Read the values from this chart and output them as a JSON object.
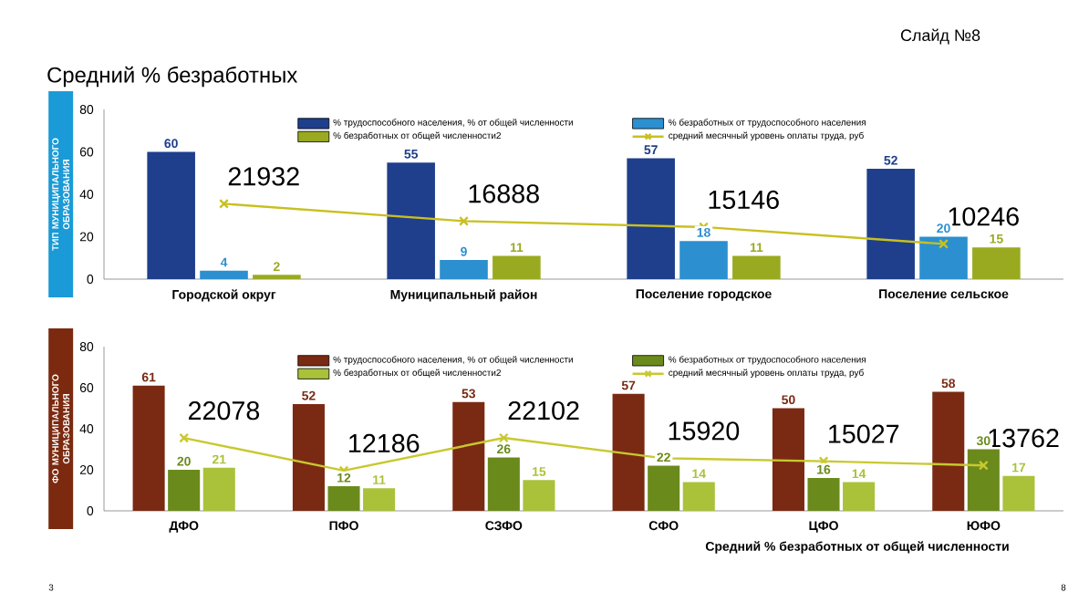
{
  "chart_data": [
    {
      "type": "bar",
      "title": "Средний % безработных",
      "ylabel": "ТИП МУНИЦИПАЛЬНОГО ОБРАЗОВАНИЯ",
      "annotations": [
        "Слайд №8"
      ],
      "categories": [
        "Городской округ",
        "Муниципальный район",
        "Поселение городское",
        "Поселение сельское"
      ],
      "series": [
        {
          "name": "% трудоспособного населения, % от общей численности",
          "color": "#1f3f8c",
          "values": [
            60,
            55,
            57,
            52
          ]
        },
        {
          "name": "% безработных от трудоспособного населения",
          "color": "#2b8fd0",
          "values": [
            4,
            9,
            18,
            20
          ]
        },
        {
          "name": "% безработных от общей численности2",
          "color": "#9aaa20",
          "values": [
            2,
            11,
            11,
            15
          ]
        },
        {
          "name": "средний месячный уровень оплаты труда, руб",
          "type": "line",
          "axis": "y2",
          "marker": "cross",
          "color": "#c8c020",
          "values": [
            21932,
            16888,
            15146,
            10246
          ]
        }
      ],
      "ylim": [
        0,
        80
      ],
      "yticks": [
        0,
        20,
        40,
        60,
        80
      ],
      "data_labels": true,
      "legend": "top"
    },
    {
      "type": "bar",
      "ylabel": "ФО МУНИЦИПАЛЬНОГО ОБРАЗОВАНИЯ",
      "annotations": [
        "Средний % безработных от общей численности",
        "3",
        "8"
      ],
      "categories": [
        "ДФО",
        "ПФО",
        "СЗФО",
        "СФО",
        "ЦФО",
        "ЮФО"
      ],
      "series": [
        {
          "name": "% трудоспособного населения, % от общей численности",
          "color": "#7a2a12",
          "values": [
            61,
            52,
            53,
            57,
            50,
            58
          ]
        },
        {
          "name": "% безработных от трудоспособного населения",
          "color": "#6b8a1c",
          "values": [
            20,
            12,
            26,
            22,
            16,
            30
          ]
        },
        {
          "name": "% безработных от общей численности2",
          "color": "#a9c23a",
          "values": [
            21,
            11,
            15,
            14,
            14,
            17
          ]
        },
        {
          "name": "средний месячный уровень оплаты труда, руб",
          "type": "line",
          "axis": "y2",
          "marker": "cross",
          "color": "#c8c830",
          "values": [
            22078,
            12186,
            22102,
            15920,
            15027,
            13762
          ]
        }
      ],
      "ylim": [
        0,
        80
      ],
      "yticks": [
        0,
        20,
        40,
        60,
        80
      ],
      "data_labels": true,
      "legend": "top"
    }
  ]
}
